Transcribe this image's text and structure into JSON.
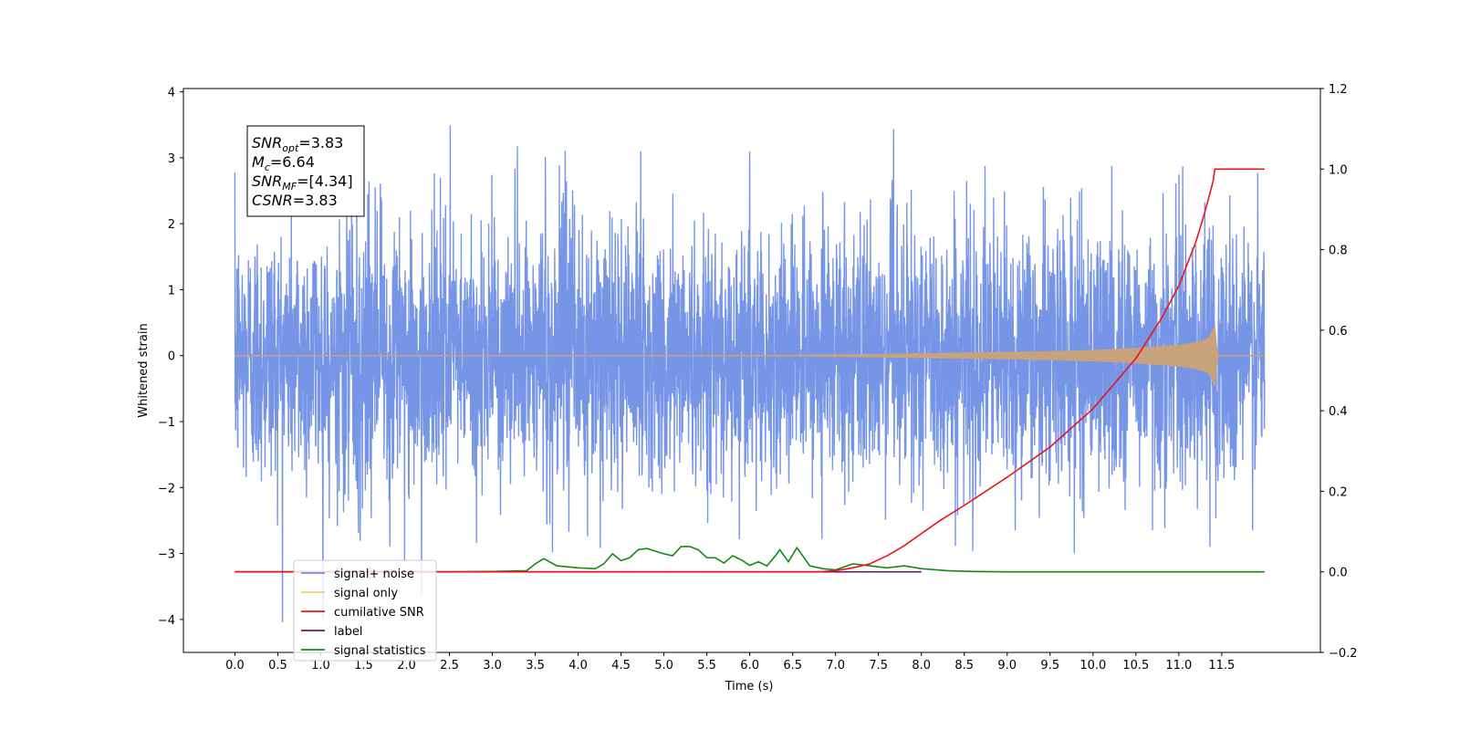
{
  "chart_data": {
    "type": "line",
    "title": "",
    "xlabel": "Time (s)",
    "ylabel": "Whitened strain",
    "y2label": "",
    "xlim": [
      -0.6,
      12.65
    ],
    "ylim": [
      -4.5,
      4.05
    ],
    "y2lim": [
      -0.2,
      1.2
    ],
    "x_ticks": [
      0.0,
      0.5,
      1.0,
      1.5,
      2.0,
      2.5,
      3.0,
      3.5,
      4.0,
      4.5,
      5.0,
      5.5,
      6.0,
      6.5,
      7.0,
      7.5,
      8.0,
      8.5,
      9.0,
      9.5,
      10.0,
      10.5,
      11.0,
      11.5
    ],
    "x_tick_labels": [
      "0.0",
      "0.5",
      "1.0",
      "1.5",
      "2.0",
      "2.5",
      "3.0",
      "3.5",
      "4.0",
      "4.5",
      "5.0",
      "5.5",
      "6.0",
      "6.5",
      "7.0",
      "7.5",
      "8.0",
      "8.5",
      "9.0",
      "9.5",
      "10.0",
      "10.5",
      "11.0",
      "11.5"
    ],
    "y_ticks": [
      4,
      3,
      2,
      1,
      0,
      -1,
      -2,
      -3,
      -4
    ],
    "y_tick_labels": [
      "4",
      "3",
      "2",
      "1",
      "0",
      "−1",
      "−2",
      "−3",
      "−4"
    ],
    "y2_ticks": [
      1.2,
      1.0,
      0.8,
      0.6,
      0.4,
      0.2,
      0.0,
      -0.2
    ],
    "y2_tick_labels": [
      "1.2",
      "1.0",
      "0.8",
      "0.6",
      "0.4",
      "0.2",
      "0.0",
      "−0.2"
    ],
    "grid": false,
    "legend_position": "lower-left",
    "annotation_lines": [
      {
        "name": "SNR",
        "sub": "opt",
        "value": "=3.83"
      },
      {
        "name": "M",
        "sub": "c",
        "value": "=6.64"
      },
      {
        "name": "SNR",
        "sub": "MF",
        "value": "=[4.34]"
      },
      {
        "name": "CSNR",
        "sub": "",
        "value": "=3.83"
      }
    ],
    "series": [
      {
        "name": "signal+ noise",
        "color": "#6f8fe6",
        "axis": "left",
        "noise_std": 1.0,
        "t_start": 0.0,
        "t_end": 12.0,
        "observed_max": 3.65,
        "observed_min": -4.1
      },
      {
        "name": "signal only",
        "color": "#c8a27a",
        "axis": "left",
        "envelope": {
          "t": [
            0,
            6.5,
            7.5,
            8.5,
            9.5,
            10.0,
            10.5,
            11.0,
            11.2,
            11.35,
            11.42,
            11.45,
            12.0
          ],
          "amp": [
            0.0,
            0.005,
            0.02,
            0.04,
            0.06,
            0.08,
            0.11,
            0.16,
            0.2,
            0.26,
            0.46,
            0.0,
            0.0
          ]
        }
      },
      {
        "name": "cumilative SNR",
        "color": "#e8141c",
        "axis": "right",
        "x": [
          0,
          6.8,
          7.0,
          7.2,
          7.4,
          7.6,
          7.8,
          8.0,
          8.2,
          8.5,
          9.0,
          9.5,
          10.0,
          10.5,
          10.8,
          11.0,
          11.2,
          11.3,
          11.4,
          11.42,
          11.45,
          12.0
        ],
        "y": [
          0.0,
          0.0,
          0.003,
          0.01,
          0.02,
          0.04,
          0.065,
          0.095,
          0.125,
          0.165,
          0.235,
          0.31,
          0.405,
          0.53,
          0.63,
          0.71,
          0.82,
          0.89,
          0.97,
          1.0,
          1.0,
          1.0
        ]
      },
      {
        "name": "label",
        "color": "#6b1a6b",
        "axis": "right",
        "x": [
          0,
          8.0
        ],
        "y": [
          0.0,
          0.0
        ]
      },
      {
        "name": "signal statistics",
        "color": "#138a13",
        "axis": "right",
        "x": [
          0,
          2.5,
          3.0,
          3.4,
          3.5,
          3.6,
          3.75,
          3.85,
          4.0,
          4.2,
          4.3,
          4.4,
          4.5,
          4.6,
          4.7,
          4.8,
          5.0,
          5.1,
          5.2,
          5.3,
          5.4,
          5.5,
          5.6,
          5.7,
          5.8,
          5.9,
          6.0,
          6.1,
          6.2,
          6.3,
          6.35,
          6.45,
          6.55,
          6.7,
          6.85,
          7.0,
          7.2,
          7.4,
          7.6,
          7.8,
          8.0,
          8.3,
          8.6,
          9.0,
          12.0
        ],
        "y": [
          0.0,
          0.0,
          0.001,
          0.003,
          0.02,
          0.033,
          0.015,
          0.013,
          0.01,
          0.008,
          0.02,
          0.045,
          0.028,
          0.035,
          0.055,
          0.058,
          0.045,
          0.04,
          0.063,
          0.063,
          0.055,
          0.035,
          0.035,
          0.022,
          0.04,
          0.03,
          0.016,
          0.025,
          0.015,
          0.04,
          0.055,
          0.025,
          0.06,
          0.015,
          0.008,
          0.005,
          0.02,
          0.015,
          0.01,
          0.015,
          0.008,
          0.003,
          0.001,
          0.0,
          0.0
        ]
      }
    ]
  },
  "legend": [
    {
      "label": "signal+ noise",
      "color": "#6f8fe6"
    },
    {
      "label": "signal only",
      "color": "#f7c978"
    },
    {
      "label": "cumilative SNR",
      "color": "#e8141c"
    },
    {
      "label": "label",
      "color": "#6b1a6b"
    },
    {
      "label": "signal statistics",
      "color": "#138a13"
    }
  ]
}
